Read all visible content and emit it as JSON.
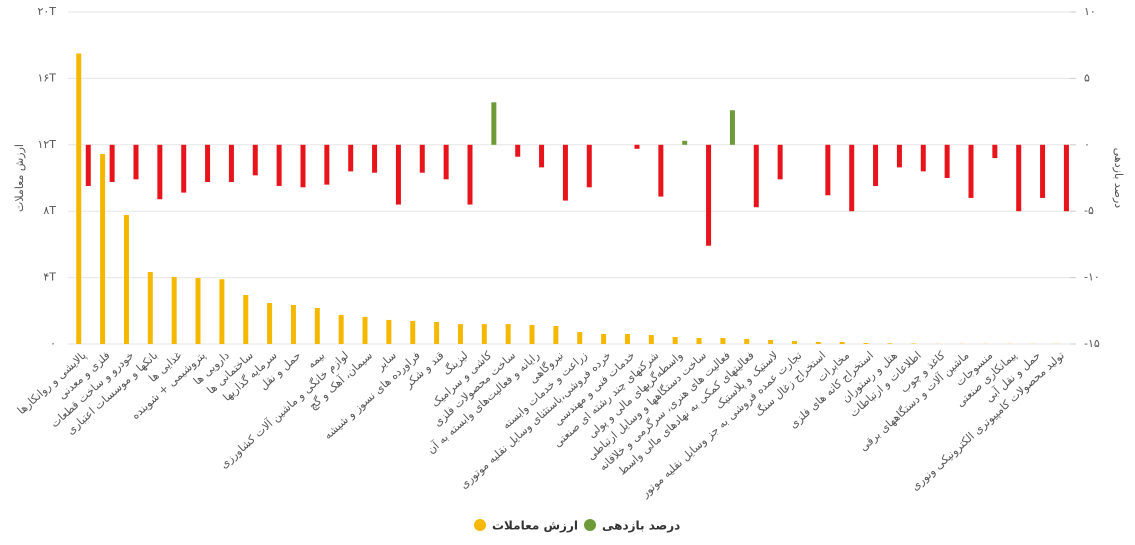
{
  "chart_data": {
    "type": "bar",
    "categories": [
      "پالایشی و روانکارها",
      "فلزی و معدنی",
      "خودرو و ساخت قطعات",
      "بانکها و موسسات اعتباری",
      "غذایی ها",
      "پتروشیمی + شوینده",
      "دارویی ها",
      "ساختمانی ها",
      "سرمایه گذاریها",
      "حمل و نقل",
      "بیمه",
      "لوازم خانگی و ماشین آلات کشاورزی",
      "سیمان، آهک و گچ",
      "سایر",
      "فراورده های نسوز و شیشه",
      "قند و شکر",
      "لیزینگ",
      "کاشی و سرامیک",
      "ساخت محصولات فلزی",
      "رایانه و فعالیت‌های وابسته به آن",
      "نیروگاهی",
      "زراعت و خدمات وابسته",
      "خرده فروشی،باستثنای وسایل نقلیه موتوری",
      "خدمات فنی و مهندسی",
      "شرکتهای چند رشته ای صنعتی",
      "واسطه‌گریهای مالی و پولی",
      "ساخت دستگاهها و وسایل ارتباطی",
      "فعالیت های هنری، سرگرمی و خلاقانه",
      "فعالیتهای کمکی به نهادهای مالی واسط",
      "لاستیک و پلاستیک",
      "تجارت عمده فروشی به جز وسایل نقلیه موتور",
      "استخراج زغال سنگ",
      "مخابرات",
      "استخراج کانه های فلزی",
      "هتل و رستوران",
      "اطلاعات و ارتباطات",
      "کاغذ و چوب",
      "ماشین آلات و دستگاههای برقی",
      "منسوجات",
      "پیمانکاری صنعتی",
      "حمل و نقل آبی",
      "تولید محصولات کامپیوتری الکترونیکی ونوری"
    ],
    "series": [
      {
        "name": "ارزش معاملات",
        "color": "#f5b800",
        "values": [
          17.5,
          11.45,
          7.77,
          4.34,
          4.04,
          3.98,
          3.9,
          2.95,
          2.47,
          2.35,
          2.17,
          1.75,
          1.63,
          1.45,
          1.39,
          1.33,
          1.2,
          1.2,
          1.2,
          1.15,
          1.08,
          0.72,
          0.6,
          0.6,
          0.54,
          0.42,
          0.36,
          0.36,
          0.3,
          0.24,
          0.18,
          0.12,
          0.12,
          0.06,
          0.04,
          0.03,
          0.01,
          0.01,
          0.01,
          0.01,
          0.01,
          0.01
        ]
      },
      {
        "name": "درصد بازدهی",
        "color": "#6f9a3a",
        "negative_color": "#e8141b",
        "axis": "y2",
        "values": [
          -3.1,
          -2.8,
          -2.6,
          -4.1,
          -3.6,
          -2.8,
          -2.8,
          -2.3,
          -3.1,
          -3.2,
          -3.0,
          -2.0,
          -2.1,
          -4.5,
          -2.1,
          -2.6,
          -4.5,
          3.2,
          -0.9,
          -1.7,
          -4.2,
          -3.2,
          null,
          -0.3,
          -3.9,
          0.3,
          -7.6,
          2.6,
          -4.7,
          -2.6,
          null,
          -3.8,
          -5.0,
          -3.1,
          -1.7,
          -2.0,
          -2.5,
          -4.0,
          -1.0,
          -5.0,
          -4.0,
          -5.0
        ]
      }
    ],
    "ylabel": "ارزش معاملات",
    "y2label": "درصد بازدهی",
    "ylim": [
      0,
      20
    ],
    "yticks": [
      {
        "value": 0,
        "label": "۰"
      },
      {
        "value": 4,
        "label": "۴T"
      },
      {
        "value": 8,
        "label": "۸T"
      },
      {
        "value": 12,
        "label": "۱۲T"
      },
      {
        "value": 16,
        "label": "۱۶T"
      },
      {
        "value": 20,
        "label": "۲۰T"
      }
    ],
    "y2lim": [
      -15,
      10
    ],
    "y2ticks": [
      {
        "value": -15,
        "label": "-۱۵"
      },
      {
        "value": -10,
        "label": "-۱۰"
      },
      {
        "value": -5,
        "label": "-۵"
      },
      {
        "value": 0,
        "label": "۰"
      },
      {
        "value": 5,
        "label": "۵"
      },
      {
        "value": 10,
        "label": "۱۰"
      }
    ],
    "grid": true
  }
}
